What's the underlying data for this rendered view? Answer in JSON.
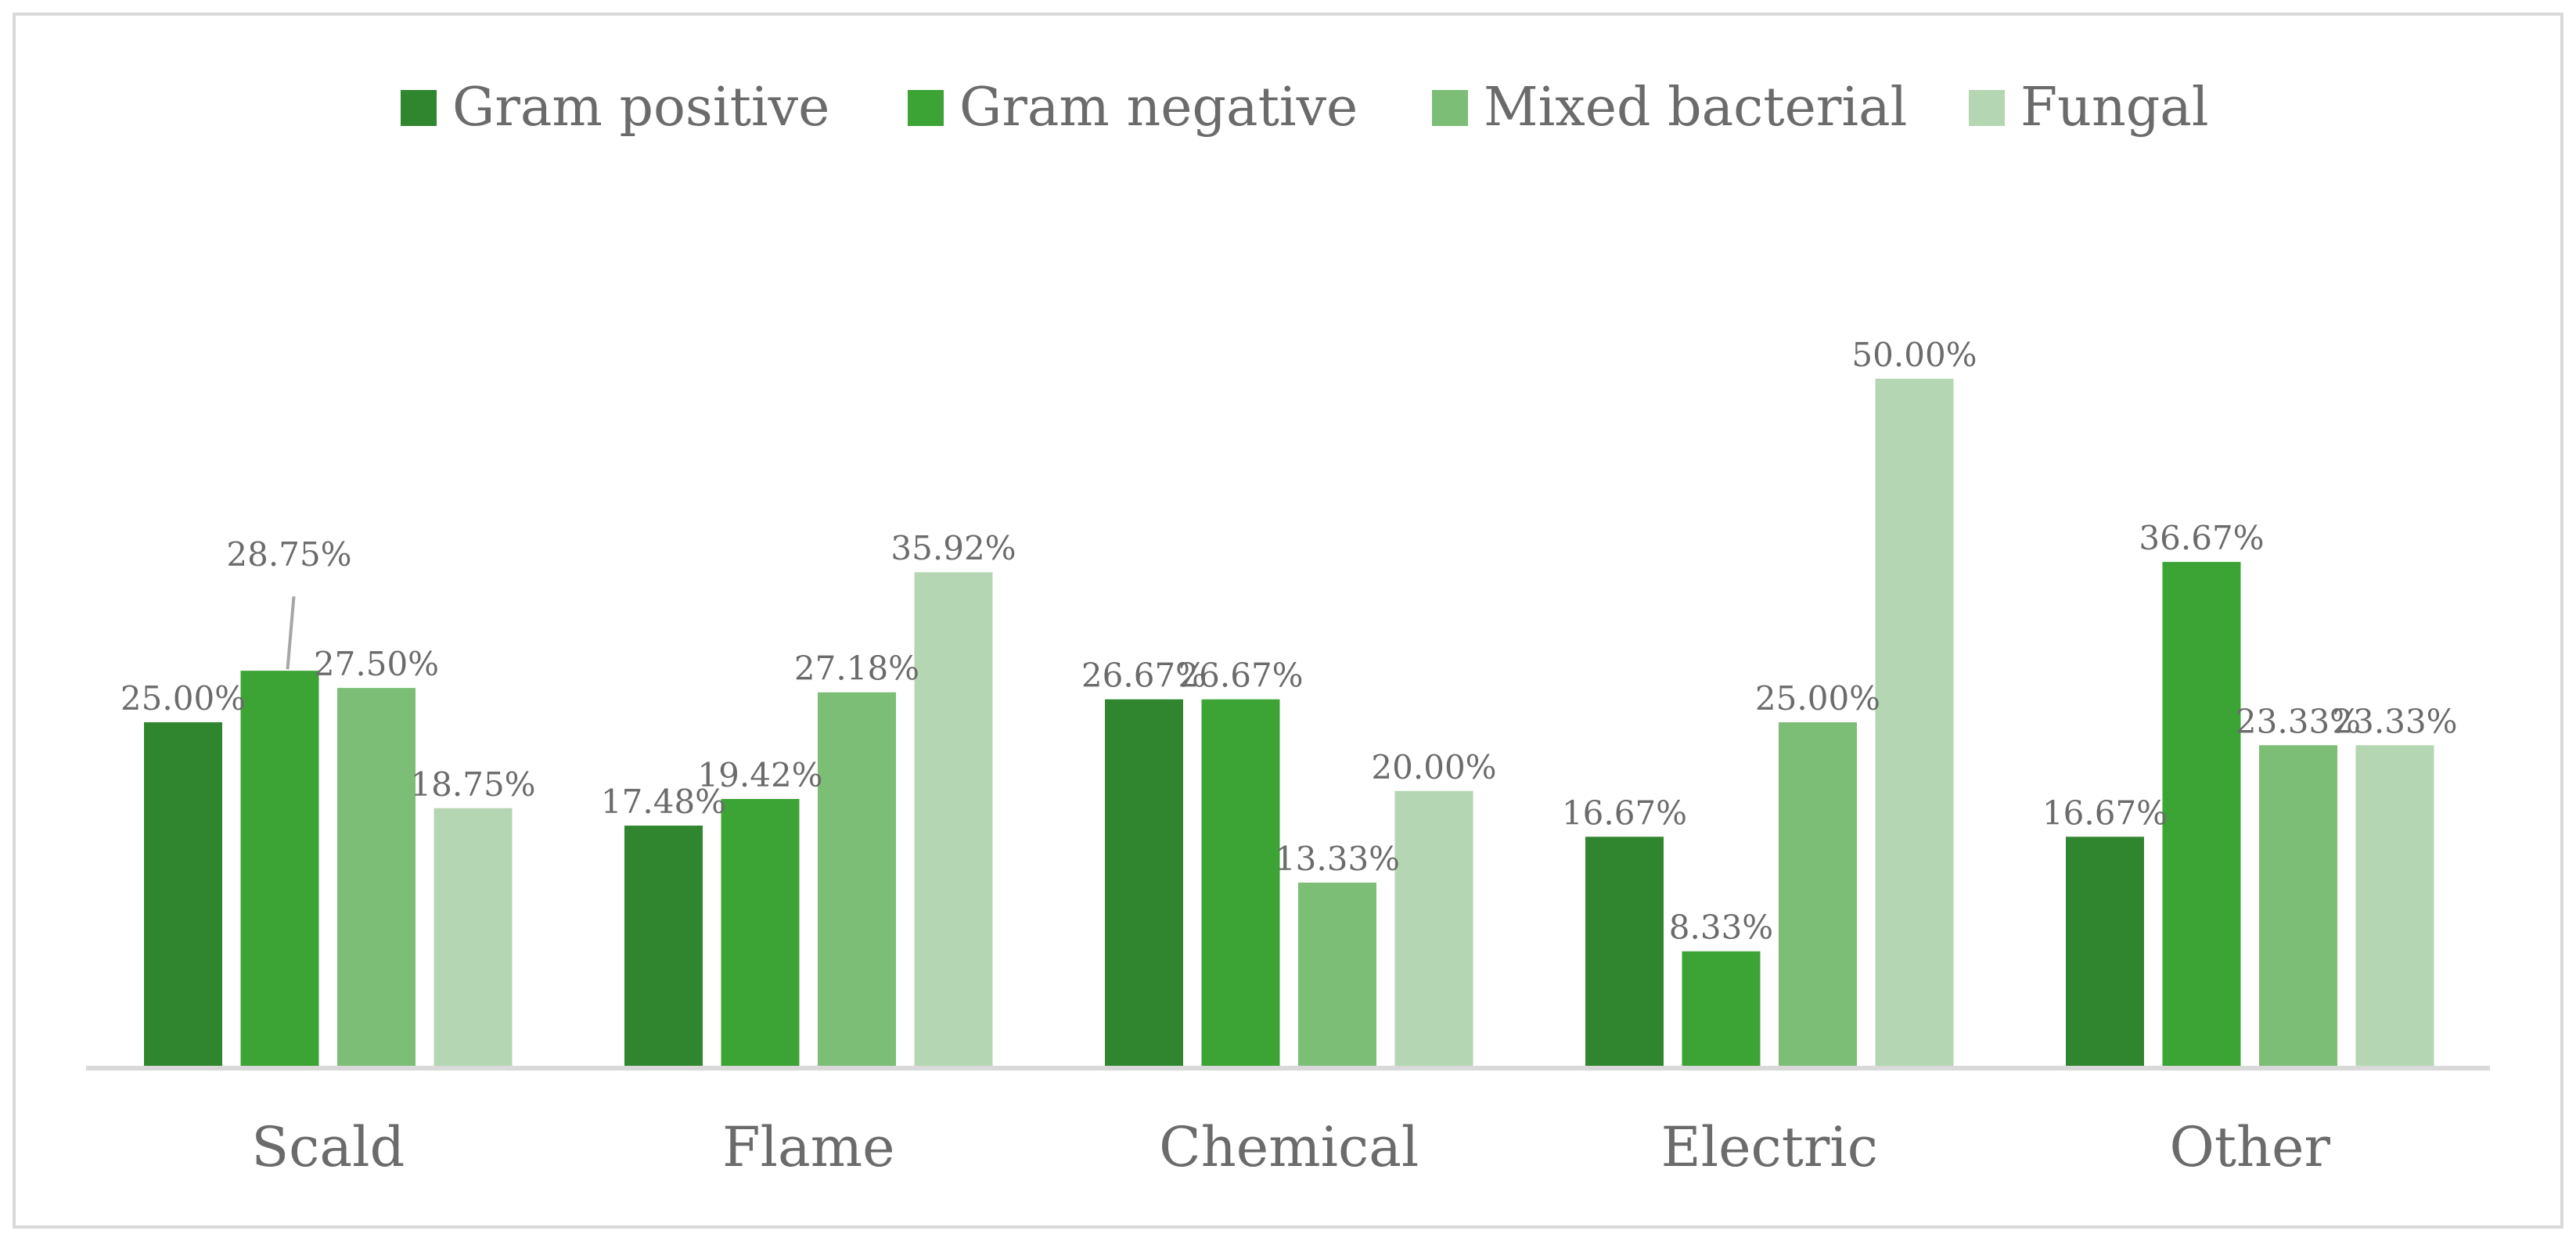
{
  "chart_data": {
    "type": "bar",
    "title": "",
    "xlabel": "",
    "ylabel": "",
    "ylim": [
      0,
      80
    ],
    "grid": false,
    "legend_position": "top",
    "categories": [
      "Scald",
      "Flame",
      "Chemical",
      "Electric",
      "Other"
    ],
    "series": [
      {
        "name": "Gram positive",
        "color": "#30862e",
        "values": [
          25.0,
          17.48,
          26.67,
          16.67,
          16.67
        ],
        "labels": [
          "25.00%",
          "17.48%",
          "26.67%",
          "16.67%",
          "16.67%"
        ]
      },
      {
        "name": "Gram negative",
        "color": "#3ca335",
        "values": [
          28.75,
          19.42,
          26.67,
          8.33,
          36.67
        ],
        "labels": [
          "28.75%",
          "19.42%",
          "26.67%",
          "8.33%",
          "36.67%"
        ]
      },
      {
        "name": "Mixed bacterial",
        "color": "#7dbe76",
        "values": [
          27.5,
          27.18,
          13.33,
          25.0,
          23.33
        ],
        "labels": [
          "27.50%",
          "27.18%",
          "13.33%",
          "25.00%",
          "23.33%"
        ]
      },
      {
        "name": "Fungal",
        "color": "#b5d6b3",
        "values": [
          18.75,
          35.92,
          20.0,
          50.0,
          23.33
        ],
        "labels": [
          "18.75%",
          "35.92%",
          "20.00%",
          "50.00%",
          "23.33%"
        ]
      }
    ]
  }
}
